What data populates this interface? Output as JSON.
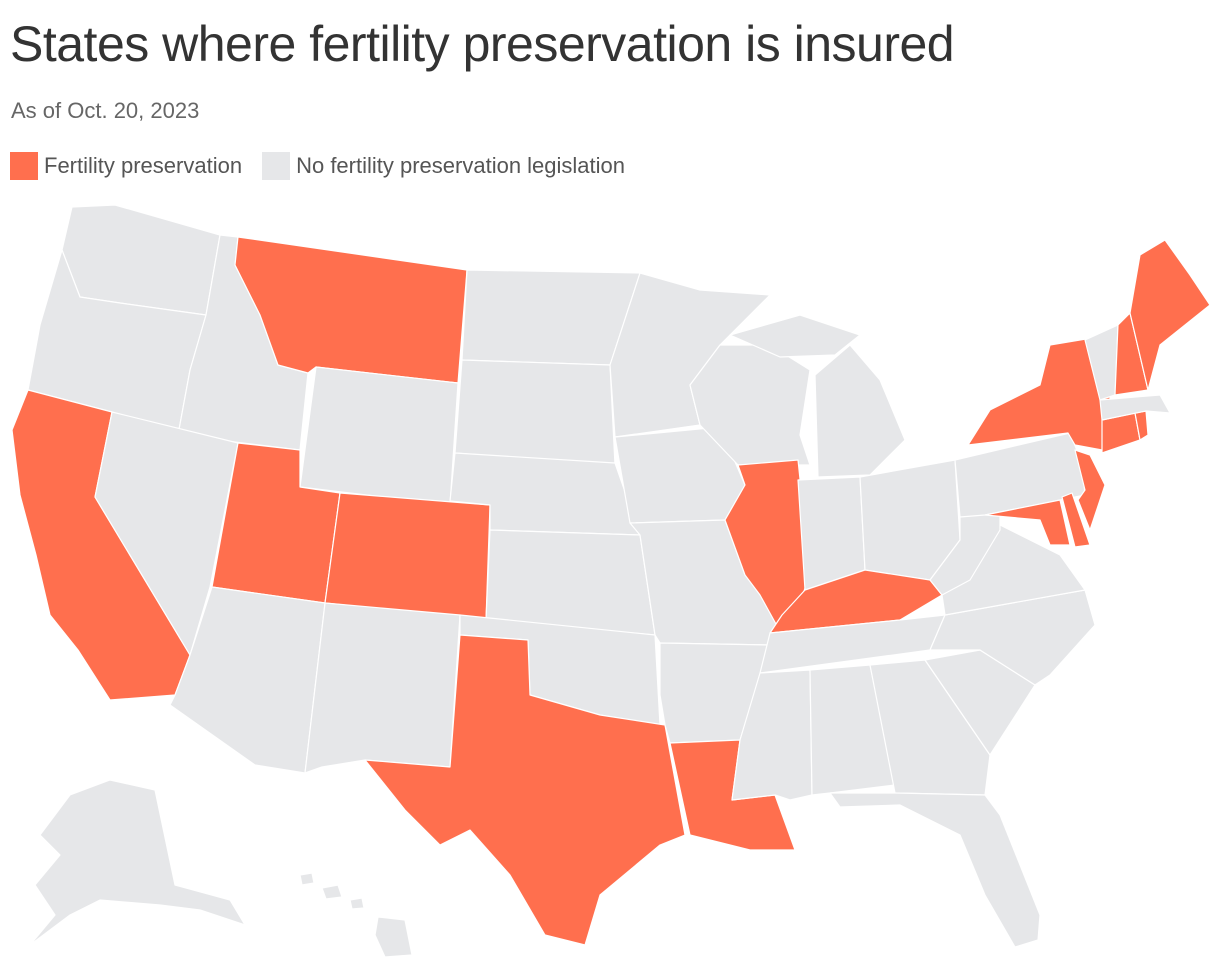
{
  "title": "States where fertility preservation is insured",
  "subtitle": "As of Oct. 20, 2023",
  "legend": [
    {
      "label": "Fertility preservation",
      "color": "#ff6f4e"
    },
    {
      "label": "No fertility preservation legislation",
      "color": "#e6e7e9"
    }
  ],
  "colors": {
    "yes": "#ff6f4e",
    "no": "#e6e7e9"
  },
  "map_data": {
    "type": "choropleth",
    "states": [
      {
        "code": "WA",
        "status": "no"
      },
      {
        "code": "OR",
        "status": "no"
      },
      {
        "code": "CA",
        "status": "yes"
      },
      {
        "code": "ID",
        "status": "no"
      },
      {
        "code": "NV",
        "status": "no"
      },
      {
        "code": "MT",
        "status": "yes"
      },
      {
        "code": "WY",
        "status": "no"
      },
      {
        "code": "UT",
        "status": "yes"
      },
      {
        "code": "AZ",
        "status": "no"
      },
      {
        "code": "CO",
        "status": "yes"
      },
      {
        "code": "NM",
        "status": "no"
      },
      {
        "code": "ND",
        "status": "no"
      },
      {
        "code": "SD",
        "status": "no"
      },
      {
        "code": "NE",
        "status": "no"
      },
      {
        "code": "KS",
        "status": "no"
      },
      {
        "code": "OK",
        "status": "no"
      },
      {
        "code": "TX",
        "status": "yes"
      },
      {
        "code": "MN",
        "status": "no"
      },
      {
        "code": "IA",
        "status": "no"
      },
      {
        "code": "MO",
        "status": "no"
      },
      {
        "code": "AR",
        "status": "no"
      },
      {
        "code": "LA",
        "status": "yes"
      },
      {
        "code": "WI",
        "status": "no"
      },
      {
        "code": "IL",
        "status": "yes"
      },
      {
        "code": "MI",
        "status": "no"
      },
      {
        "code": "IN",
        "status": "no"
      },
      {
        "code": "OH",
        "status": "no"
      },
      {
        "code": "KY",
        "status": "yes"
      },
      {
        "code": "TN",
        "status": "no"
      },
      {
        "code": "MS",
        "status": "no"
      },
      {
        "code": "AL",
        "status": "no"
      },
      {
        "code": "GA",
        "status": "no"
      },
      {
        "code": "FL",
        "status": "no"
      },
      {
        "code": "SC",
        "status": "no"
      },
      {
        "code": "NC",
        "status": "no"
      },
      {
        "code": "VA",
        "status": "no"
      },
      {
        "code": "WV",
        "status": "no"
      },
      {
        "code": "MD",
        "status": "yes"
      },
      {
        "code": "DE",
        "status": "yes"
      },
      {
        "code": "PA",
        "status": "no"
      },
      {
        "code": "NJ",
        "status": "yes"
      },
      {
        "code": "NY",
        "status": "yes"
      },
      {
        "code": "CT",
        "status": "yes"
      },
      {
        "code": "RI",
        "status": "yes"
      },
      {
        "code": "MA",
        "status": "no"
      },
      {
        "code": "VT",
        "status": "no"
      },
      {
        "code": "NH",
        "status": "yes"
      },
      {
        "code": "ME",
        "status": "yes"
      },
      {
        "code": "AK",
        "status": "no"
      },
      {
        "code": "HI",
        "status": "no"
      }
    ]
  }
}
